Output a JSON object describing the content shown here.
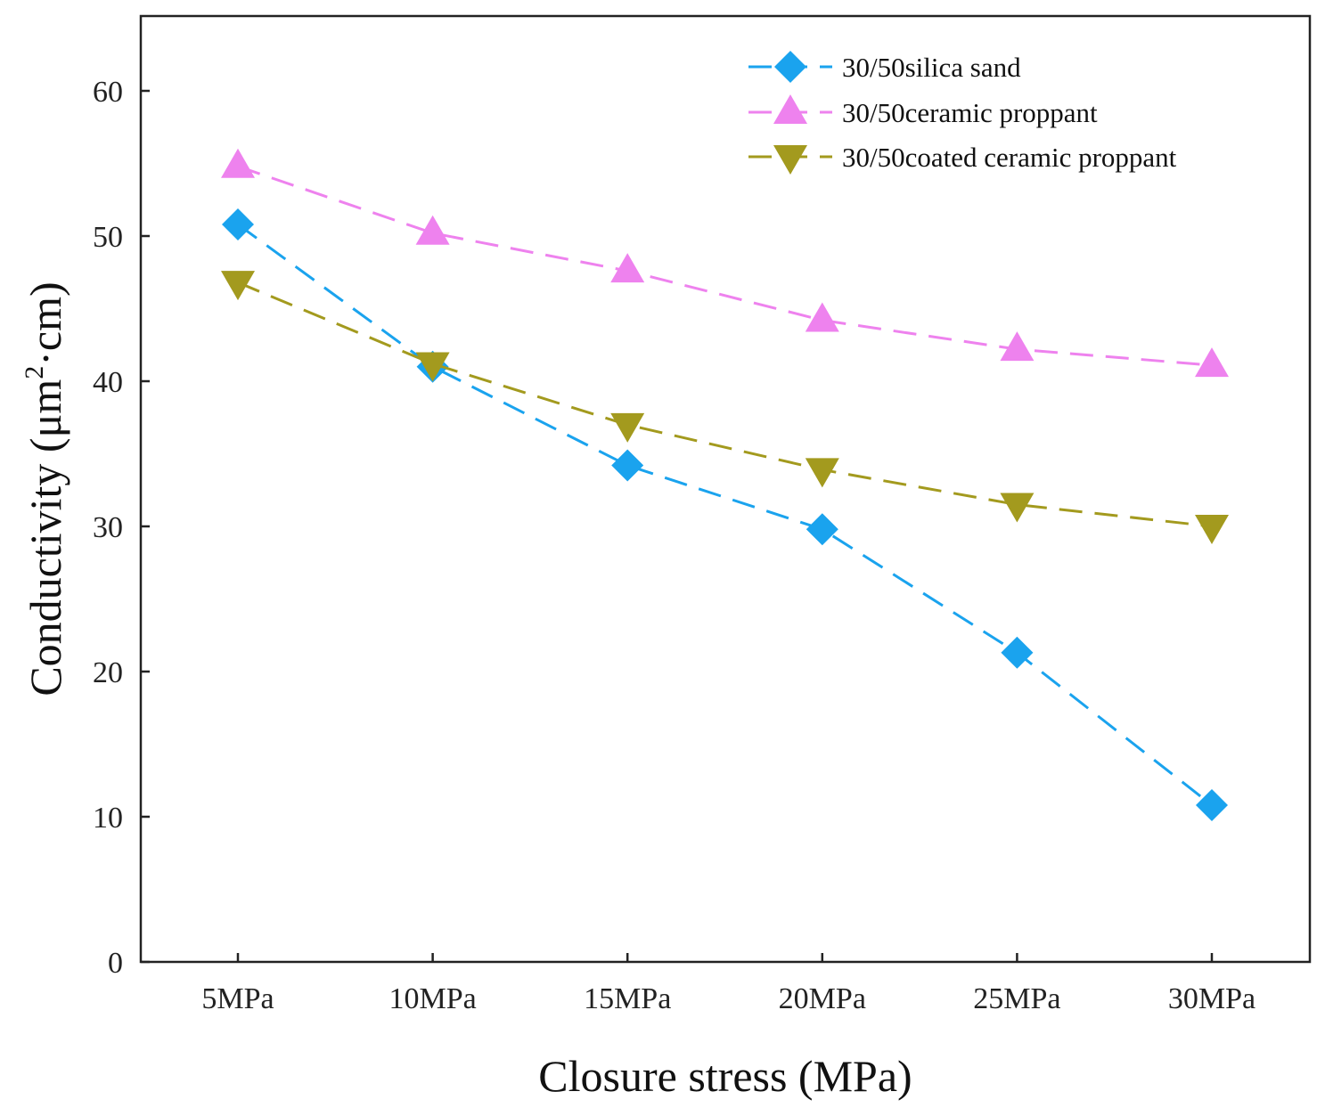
{
  "chart_data": {
    "type": "line",
    "title": "",
    "xlabel": "Closure stress (MPa)",
    "ylabel_main": "Conductivity (μm",
    "ylabel_sup": "2",
    "ylabel_tail": "·cm)",
    "categories": [
      "5MPa",
      "10MPa",
      "15MPa",
      "20MPa",
      "25MPa",
      "30MPa"
    ],
    "ylim": [
      0,
      65
    ],
    "yticks": [
      0,
      10,
      20,
      30,
      40,
      50,
      60
    ],
    "grid": false,
    "legend_position": "top-right",
    "series": [
      {
        "name": "30/50silica sand",
        "color": "#1aa3ee",
        "marker": "diamond",
        "values": [
          50.8,
          41.0,
          34.2,
          29.8,
          21.3,
          10.8
        ]
      },
      {
        "name": "30/50ceramic proppant",
        "color": "#ee82ee",
        "marker": "triangle-up",
        "values": [
          54.8,
          50.2,
          47.6,
          44.2,
          42.2,
          41.1
        ]
      },
      {
        "name": "30/50coated ceramic proppant",
        "color": "#a39a1e",
        "marker": "triangle-down",
        "values": [
          46.8,
          41.2,
          37.0,
          33.9,
          31.5,
          30.0
        ]
      }
    ]
  }
}
